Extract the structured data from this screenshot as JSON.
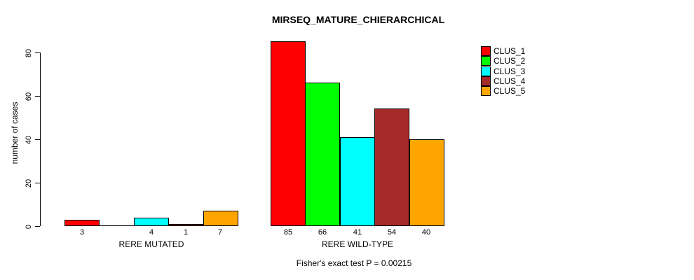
{
  "title": "MIRSEQ_MATURE_CHIERARCHICAL",
  "footer": "Fisher's exact test P = 0.00215",
  "chart_data": {
    "type": "bar",
    "title": "MIRSEQ_MATURE_CHIERARCHICAL",
    "xlabel": "",
    "ylabel": "number of cases",
    "ylim": [
      0,
      85
    ],
    "yticks": [
      0,
      20,
      40,
      60,
      80
    ],
    "grid": false,
    "legend_position": "top-right",
    "series": [
      "CLUS_1",
      "CLUS_2",
      "CLUS_3",
      "CLUS_4",
      "CLUS_5"
    ],
    "colors": [
      "#FF0000",
      "#00FF00",
      "#00FFFF",
      "#A52A2A",
      "#FFA500"
    ],
    "groups": [
      {
        "label": "RERE MUTATED",
        "values": [
          3,
          0,
          4,
          1,
          7
        ],
        "bar_labels": [
          "3",
          "",
          "4",
          "1",
          "7"
        ]
      },
      {
        "label": "RERE WILD-TYPE",
        "values": [
          85,
          66,
          41,
          54,
          40
        ],
        "bar_labels": [
          "85",
          "66",
          "41",
          "54",
          "40"
        ]
      }
    ],
    "annotation": "Fisher's exact test P = 0.00215"
  }
}
